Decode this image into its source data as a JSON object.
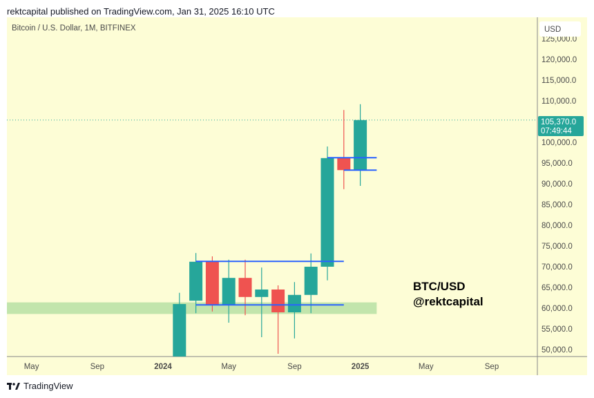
{
  "header": {
    "published": "rektcapital published on TradingView.com, Jan 31, 2025 16:10 UTC"
  },
  "footer": {
    "brand": "TradingView",
    "logo_icon": "tradingview-logo-icon"
  },
  "chart_data": {
    "type": "candlestick",
    "title": "Bitcoin / U.S. Dollar, 1M, BITFINEX",
    "currency": "USD",
    "colors": {
      "up": "#26a69a",
      "down": "#ef5350",
      "background": "#fdfdd6",
      "lines": "#2962ff",
      "zone": "#b7e0a5",
      "price_tag": "#26a69a"
    },
    "y_ticks": [
      "125,000.0",
      "120,000.0",
      "115,000.0",
      "110,000.0",
      "100,000.0",
      "95,000.0",
      "90,000.0",
      "85,000.0",
      "80,000.0",
      "75,000.0",
      "70,000.0",
      "65,000.0",
      "60,000.0",
      "55,000.0",
      "50,000.0"
    ],
    "y_tick_values": [
      125000,
      120000,
      115000,
      110000,
      100000,
      95000,
      90000,
      85000,
      80000,
      75000,
      70000,
      65000,
      60000,
      55000,
      50000
    ],
    "x_ticks": [
      {
        "label": "May",
        "month": "2023-05"
      },
      {
        "label": "Sep",
        "month": "2023-09"
      },
      {
        "label": "2024",
        "month": "2024-01",
        "bold": true
      },
      {
        "label": "May",
        "month": "2024-05"
      },
      {
        "label": "Sep",
        "month": "2024-09"
      },
      {
        "label": "2025",
        "month": "2025-01",
        "bold": true
      },
      {
        "label": "May",
        "month": "2025-05"
      },
      {
        "label": "Sep",
        "month": "2025-09"
      }
    ],
    "last_price": {
      "value": "105,370.0",
      "countdown": "07:49:44",
      "price": 105370
    },
    "candles": [
      {
        "month": "2024-02",
        "open": 42500,
        "high": 63700,
        "low": 42000,
        "close": 61000
      },
      {
        "month": "2024-03",
        "open": 61800,
        "high": 73300,
        "low": 58800,
        "close": 71200
      },
      {
        "month": "2024-04",
        "open": 71200,
        "high": 72500,
        "low": 59200,
        "close": 60700
      },
      {
        "month": "2024-05",
        "open": 60700,
        "high": 71700,
        "low": 56500,
        "close": 67300
      },
      {
        "month": "2024-06",
        "open": 67300,
        "high": 71700,
        "low": 58300,
        "close": 62700
      },
      {
        "month": "2024-07",
        "open": 62700,
        "high": 69800,
        "low": 53000,
        "close": 64500
      },
      {
        "month": "2024-08",
        "open": 64500,
        "high": 65500,
        "low": 49000,
        "close": 59000
      },
      {
        "month": "2024-09",
        "open": 59000,
        "high": 66300,
        "low": 52700,
        "close": 63200
      },
      {
        "month": "2024-10",
        "open": 63200,
        "high": 73200,
        "low": 58800,
        "close": 70000
      },
      {
        "month": "2024-11",
        "open": 70000,
        "high": 99000,
        "low": 66700,
        "close": 96200
      },
      {
        "month": "2024-12",
        "open": 96200,
        "high": 107800,
        "low": 88700,
        "close": 93300
      },
      {
        "month": "2025-01",
        "open": 93300,
        "high": 109200,
        "low": 89500,
        "close": 105370
      }
    ],
    "horizontal_lines": [
      {
        "price": 71300,
        "from": "2024-03",
        "to": "2024-12"
      },
      {
        "price": 60800,
        "from": "2024-03",
        "to": "2024-12"
      },
      {
        "price": 96300,
        "from": "2024-11",
        "to": "2025-02"
      },
      {
        "price": 93300,
        "from": "2024-12",
        "to": "2025-02"
      }
    ],
    "support_zone": {
      "low": 58600,
      "high": 61400,
      "to": "2025-02"
    },
    "annotation": [
      "BTC/USD",
      "@rektcapital"
    ]
  }
}
